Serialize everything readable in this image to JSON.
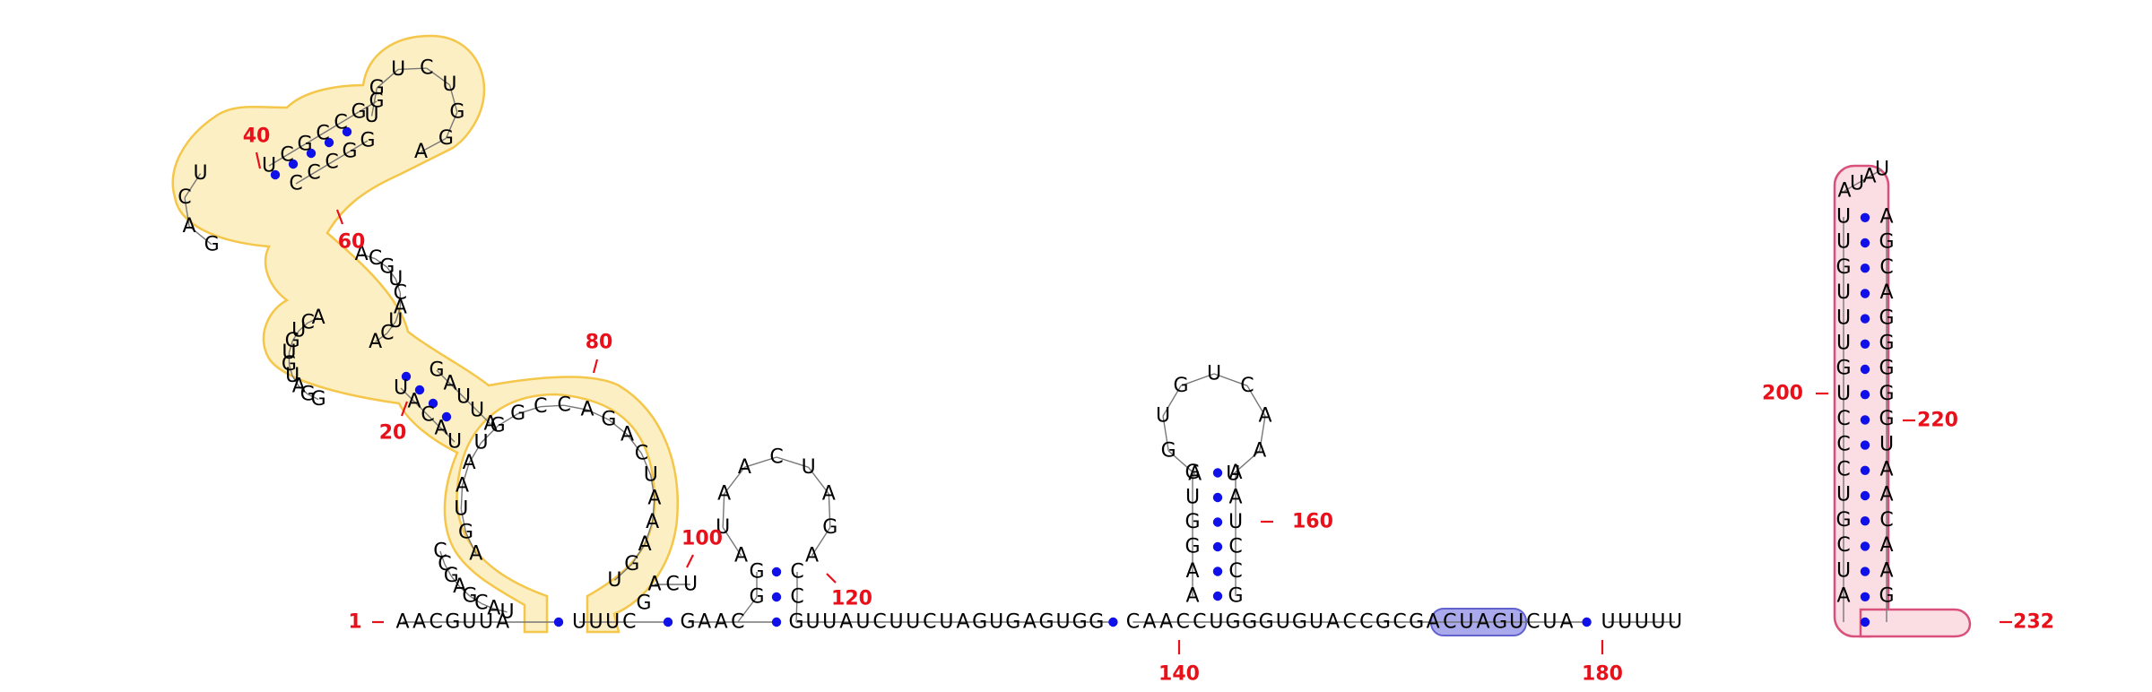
{
  "sequence": "AACGUUAAUUUCGAACGUUAUCUUCUAGUGAGUGGCAACCUGGGUGUACCGCGACUAGUCUAUUUUU",
  "colors": {
    "nucleotide": "#000000",
    "base_pair": "#1010e8",
    "position_label": "#e8101a",
    "highlight_yellow": "#fdefc4",
    "highlight_pink": "#fbdde4",
    "highlight_blue": "#a9a9ec"
  },
  "strands": {
    "left_stem": "AACGUUA",
    "linker_a": "UUUC",
    "hairpin_118_5p": "GAAC",
    "spacer_140": "GUUAUCUUCUAGUGAGUGG",
    "hairpin_160": "CAACCUGGGUGUACCGCGACUAGUCUA",
    "tail": "UUUUU"
  },
  "hairpin_118": {
    "stem_5p": [
      "G",
      "G"
    ],
    "loop": [
      "A",
      "U",
      "A",
      "A",
      "C",
      "U",
      "A",
      "G",
      "A"
    ],
    "stem_3p": [
      "C",
      "C"
    ]
  },
  "hairpin_150": {
    "stem_5p": [
      "G",
      "U",
      "G",
      "G",
      "A",
      "A",
      "U"
    ],
    "loop": [
      "A",
      "G",
      "U",
      "G",
      "U",
      "C",
      "A",
      "A",
      "U"
    ],
    "stem_3p": [
      "A",
      "A",
      "U",
      "C",
      "C",
      "G",
      "C"
    ]
  },
  "hairpin_210": {
    "stem_5p": [
      "A",
      "U",
      "C",
      "G",
      "U",
      "C",
      "C",
      "C",
      "U",
      "G",
      "U",
      "U",
      "U",
      "G",
      "U",
      "U",
      "C"
    ],
    "loop": [
      "A",
      "U",
      "A",
      "U"
    ],
    "stem_3p": [
      "G",
      "A",
      "A",
      "C",
      "A",
      "A",
      "U",
      "G",
      "G",
      "G",
      "G",
      "G",
      "A",
      "C",
      "G",
      "A",
      "U"
    ]
  },
  "domain_yellow": {
    "stem1_5p": [
      "U",
      "A",
      "C",
      "A",
      "U"
    ],
    "stem1_3p": [
      "G",
      "A",
      "U",
      "U",
      "A"
    ],
    "internal_5p": [
      "G",
      "G",
      "A",
      "U",
      "G",
      "U",
      "G",
      "U",
      "C",
      "A"
    ],
    "stem2_5p": [
      "U",
      "C",
      "G",
      "C",
      "C",
      "G",
      "G"
    ],
    "hairpin_loop": [
      "U",
      "G",
      "U",
      "C",
      "U",
      "G",
      "G",
      "A"
    ],
    "stem2_3p": [
      "C",
      "C",
      "C",
      "G",
      "G"
    ],
    "internal_3p": [
      "A",
      "C",
      "G",
      "U",
      "C",
      "A",
      "U",
      "C",
      "A"
    ],
    "big_loop": [
      "A",
      "G",
      "U",
      "A",
      "A",
      "U",
      "G",
      "G",
      "C",
      "C",
      "A",
      "G",
      "A",
      "C",
      "U",
      "A",
      "A",
      "A",
      "G",
      "U"
    ],
    "multiloop_bottom": [
      "U",
      "A",
      "C",
      "G",
      "A",
      "G",
      "C",
      "C"
    ],
    "junction": [
      "G",
      "A",
      "C",
      "U"
    ]
  },
  "position_labels": [
    "1",
    "20",
    "40",
    "60",
    "80",
    "100",
    "120",
    "140",
    "160",
    "180",
    "200",
    "220",
    "232"
  ]
}
